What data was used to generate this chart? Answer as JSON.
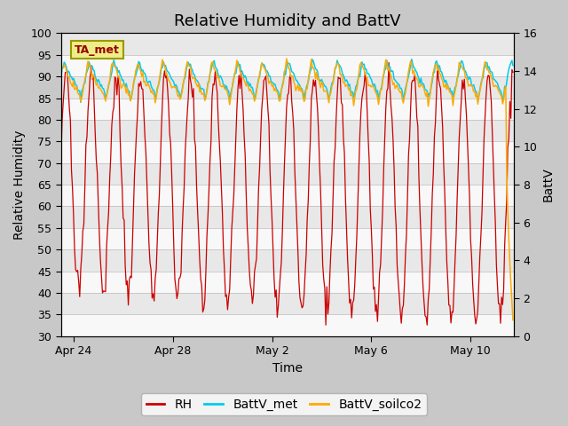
{
  "title": "Relative Humidity and BattV",
  "xlabel": "Time",
  "ylabel_left": "Relative Humidity",
  "ylabel_right": "BattV",
  "ylim_left": [
    30,
    100
  ],
  "ylim_right": [
    0,
    16
  ],
  "yticks_left": [
    30,
    35,
    40,
    45,
    50,
    55,
    60,
    65,
    70,
    75,
    80,
    85,
    90,
    95,
    100
  ],
  "yticks_right": [
    0,
    2,
    4,
    6,
    8,
    10,
    12,
    14,
    16
  ],
  "annotation_text": "TA_met",
  "annotation_facecolor": "#eeee88",
  "annotation_edgecolor": "#999900",
  "annotation_textcolor": "#990000",
  "line_RH_color": "#cc0000",
  "line_battv_met_color": "#00ccee",
  "line_battv_soilco2_color": "#ffaa00",
  "legend_labels": [
    "RH",
    "BattV_met",
    "BattV_soilco2"
  ],
  "background_color": "#e8e8e8",
  "white_band_color": "#f8f8f8",
  "title_fontsize": 13,
  "axis_label_fontsize": 10,
  "tick_fontsize": 9,
  "legend_fontsize": 10
}
